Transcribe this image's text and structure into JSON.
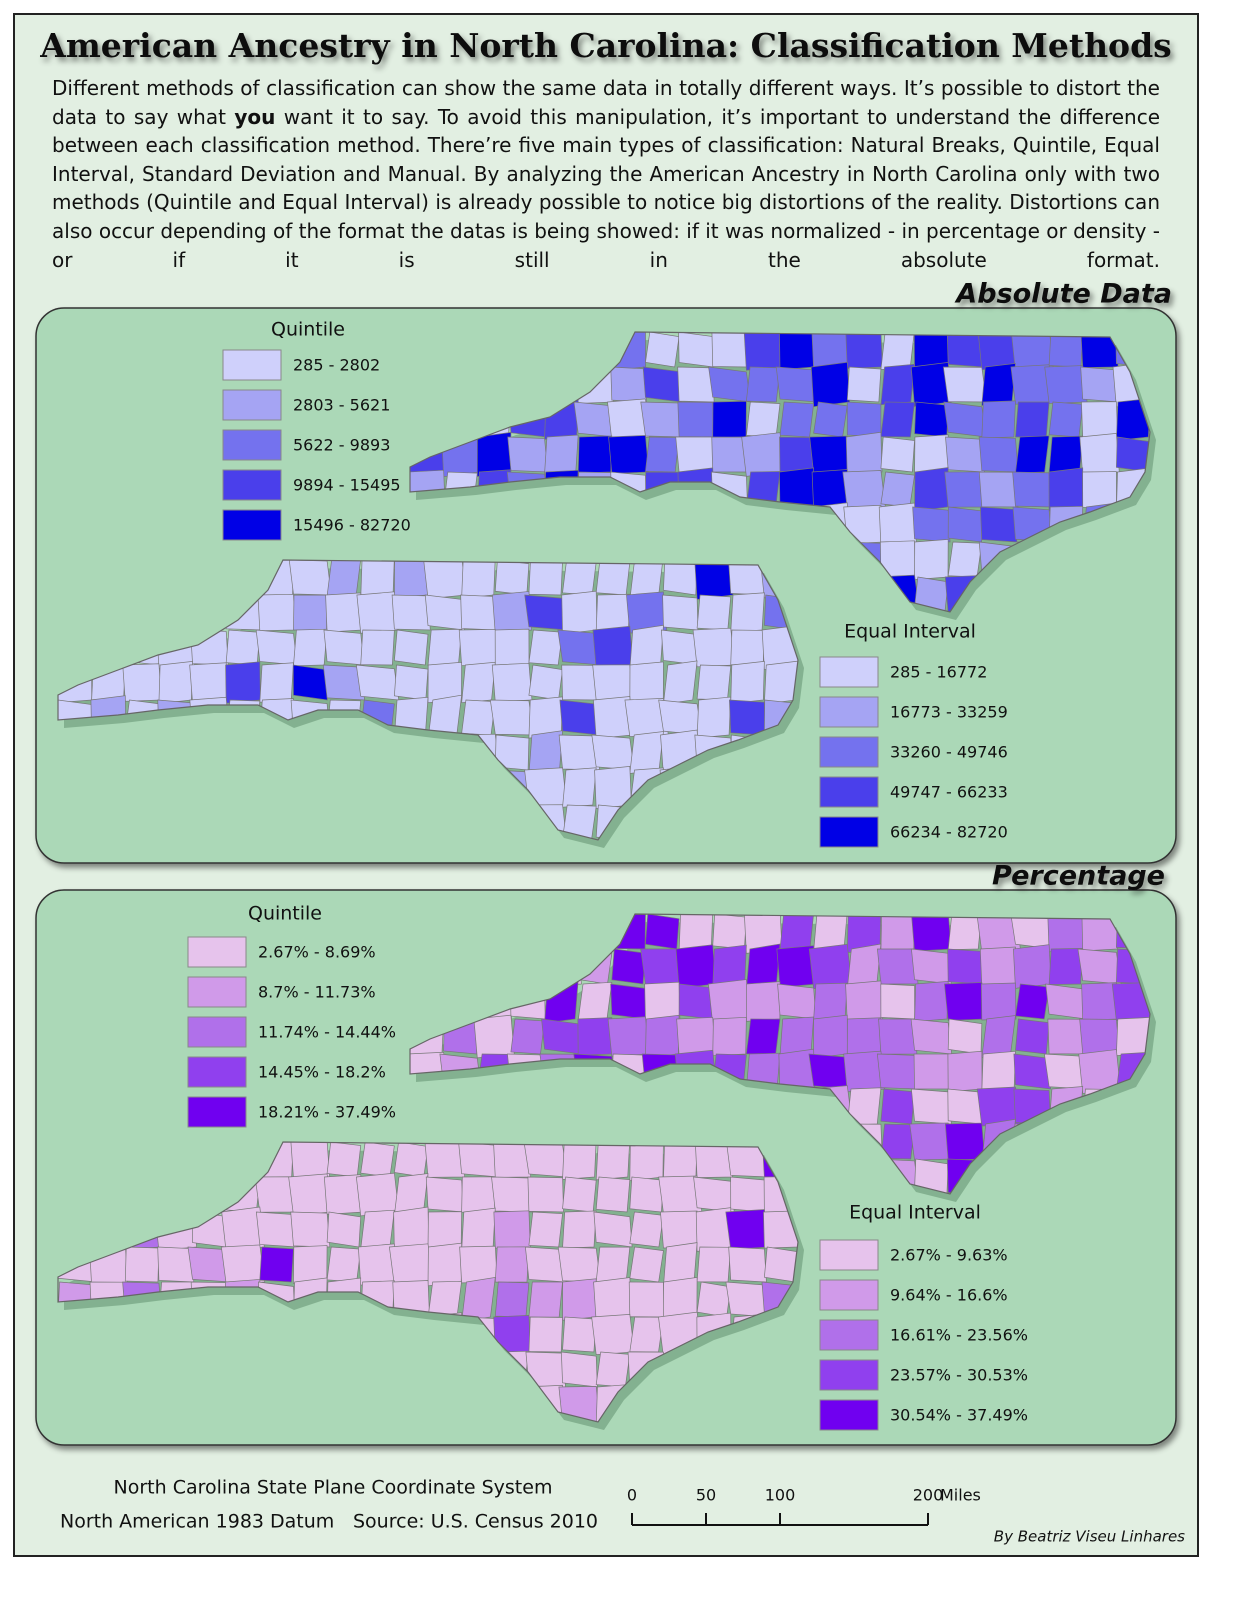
{
  "header": {
    "title": "American Ancestry in North Carolina: Classification Methods"
  },
  "intro": {
    "before": "Different methods of classification can show the same data in totally different ways. It’s possible to distort the data to say what ",
    "emphasis": "you",
    "after": " want it to say. To avoid this manipulation, it’s important to understand the difference between each classification method. There’re five main types of classification: Natural Breaks, Quintile, Equal Interval, Standard Deviation and Manual. By analyzing the American Ancestry in North Carolina only with two methods (Quintile and Equal Interval) is already possible to notice big distortions of the reality. Distortions can also occur depending of the format the datas is being showed: if it was normalized - in percentage or density - or if it is still in the absolute format."
  },
  "sections": [
    {
      "title": "Absolute Data",
      "legends": [
        {
          "title": "Quintile",
          "classes": [
            {
              "label": "285 - 2802",
              "color": "#cfd0fb"
            },
            {
              "label": "2803 - 5621",
              "color": "#a5a4f3"
            },
            {
              "label": "5622 - 9893",
              "color": "#7472ee"
            },
            {
              "label": "9894 - 15495",
              "color": "#4a3feb"
            },
            {
              "label": "15496 - 82720",
              "color": "#0000e6"
            }
          ]
        },
        {
          "title": "Equal Interval",
          "classes": [
            {
              "label": "285 - 16772",
              "color": "#cfd0fb"
            },
            {
              "label": "16773 - 33259",
              "color": "#a5a4f3"
            },
            {
              "label": "33260 - 49746",
              "color": "#7472ee"
            },
            {
              "label": "49747 - 66233",
              "color": "#4a3feb"
            },
            {
              "label": "66234 - 82720",
              "color": "#0000e6"
            }
          ]
        }
      ]
    },
    {
      "title": "Percentage",
      "legends": [
        {
          "title": "Quintile",
          "classes": [
            {
              "label": "2.67% - 8.69%",
              "color": "#e6c3ec"
            },
            {
              "label": "8.7% - 11.73%",
              "color": "#d09ae9"
            },
            {
              "label": "11.74% - 14.44%",
              "color": "#b070ea"
            },
            {
              "label": "14.45% - 18.2%",
              "color": "#9040ee"
            },
            {
              "label": "18.21% - 37.49%",
              "color": "#7000f0"
            }
          ]
        },
        {
          "title": "Equal Interval",
          "classes": [
            {
              "label": "2.67% - 9.63%",
              "color": "#e6c3ec"
            },
            {
              "label": "9.64% - 16.6%",
              "color": "#d09ae9"
            },
            {
              "label": "16.61% - 23.56%",
              "color": "#b070ea"
            },
            {
              "label": "23.57% - 30.53%",
              "color": "#9040ee"
            },
            {
              "label": "30.54% - 37.49%",
              "color": "#7000f0"
            }
          ]
        }
      ]
    }
  ],
  "footer": {
    "projection": "North Carolina State Plane Coordinate System",
    "datum": "North American 1983 Datum",
    "source": "Source: U.S. Census 2010",
    "scale_bar": {
      "ticks": [
        0,
        50,
        100,
        200
      ],
      "unit": "Miles"
    },
    "credit": "By Beatriz Viseu Linhares"
  }
}
